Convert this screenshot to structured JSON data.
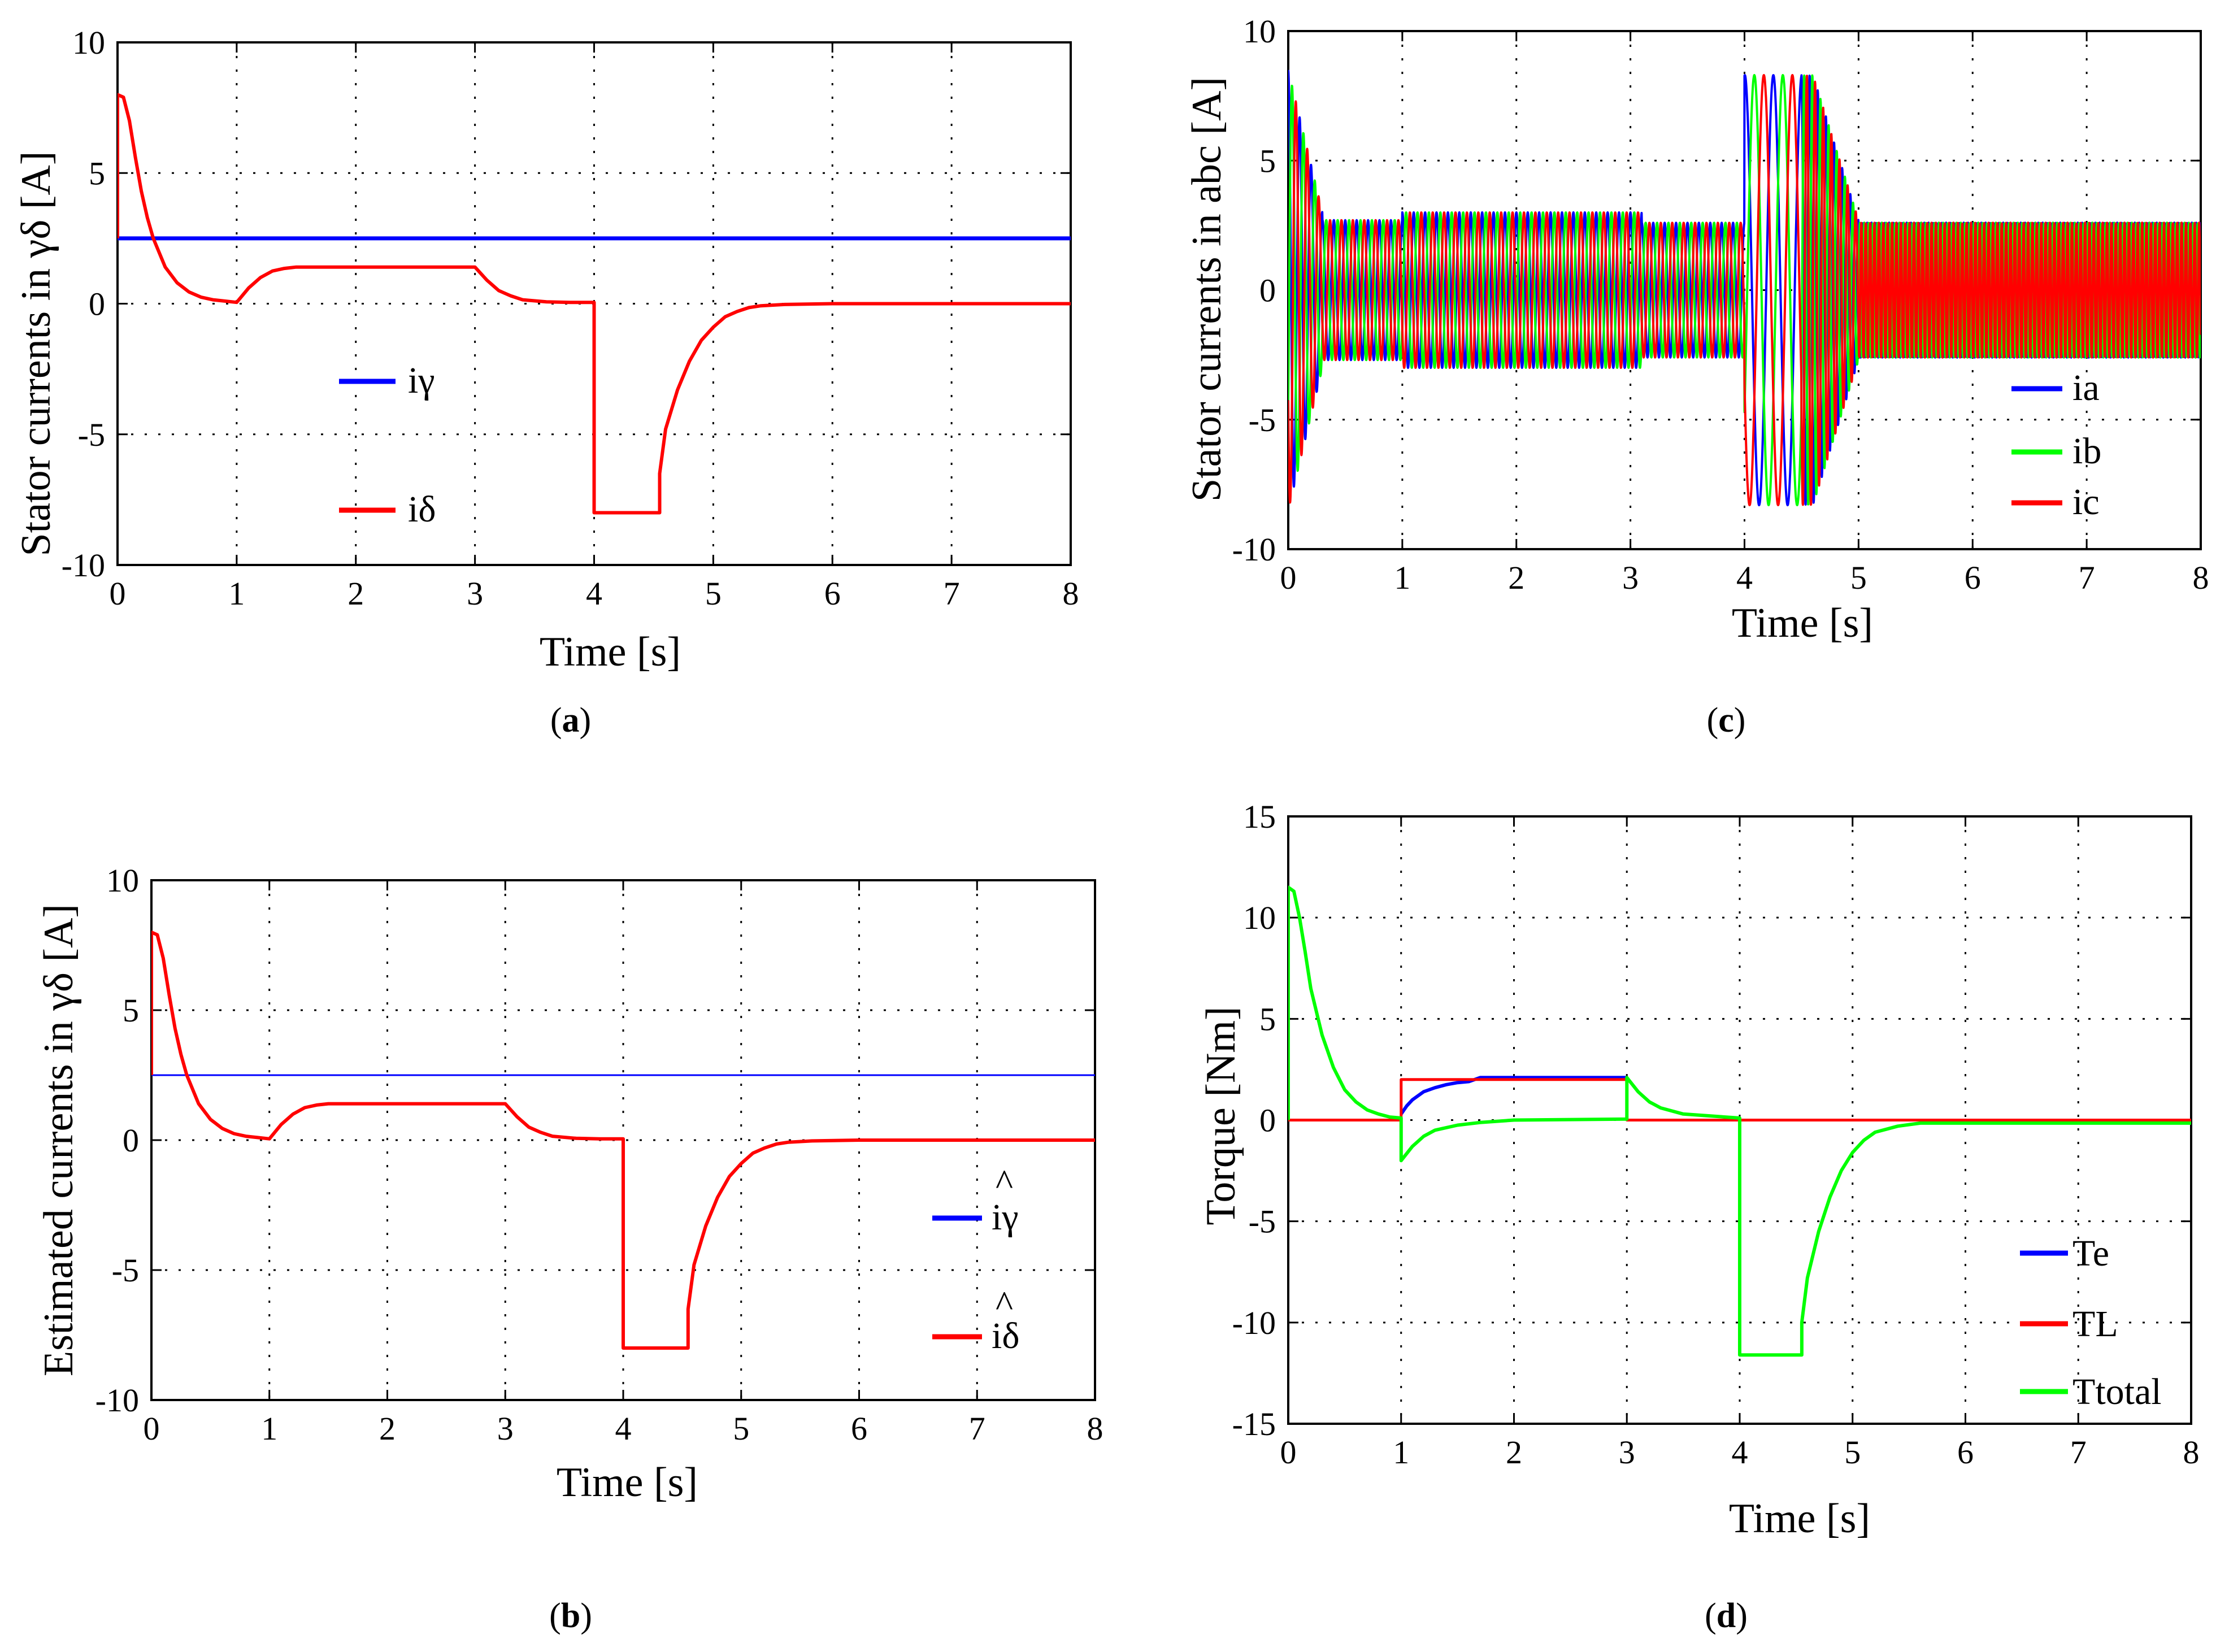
{
  "chart_data": [
    {
      "id": "a",
      "type": "line",
      "caption_letter": "a",
      "xlabel": "Time [s]",
      "ylabel": "Stator currents in γδ [A]",
      "xlim": [
        0,
        8
      ],
      "ylim": [
        -10,
        10
      ],
      "xticks": [
        "0",
        "1",
        "2",
        "3",
        "4",
        "5",
        "6",
        "7",
        "8"
      ],
      "yticks": [
        "-10",
        "-5",
        "0",
        "5",
        "10"
      ],
      "grid": true,
      "legend_position": "center-left",
      "series": [
        {
          "name": "iγ",
          "color": "#0000ff",
          "width": 7,
          "x": [
            0,
            8
          ],
          "y": [
            2.5,
            2.5
          ]
        },
        {
          "name": "iδ",
          "color": "#ff0000",
          "width": 6,
          "x": [
            0,
            0,
            0.05,
            0.1,
            0.15,
            0.2,
            0.25,
            0.3,
            0.4,
            0.5,
            0.6,
            0.7,
            0.8,
            0.9,
            1.0,
            1.1,
            1.2,
            1.3,
            1.4,
            1.5,
            3.0,
            3.1,
            3.2,
            3.3,
            3.4,
            3.6,
            3.8,
            4.0,
            4.0,
            4.55,
            4.55,
            4.6,
            4.7,
            4.8,
            4.9,
            5.0,
            5.1,
            5.2,
            5.3,
            5.4,
            5.6,
            6,
            8
          ],
          "y": [
            2.5,
            8,
            7.9,
            7.0,
            5.6,
            4.3,
            3.3,
            2.5,
            1.4,
            0.8,
            0.45,
            0.25,
            0.15,
            0.1,
            0.05,
            0.6,
            1.0,
            1.25,
            1.35,
            1.4,
            1.4,
            0.9,
            0.5,
            0.3,
            0.15,
            0.07,
            0.05,
            0.05,
            -8,
            -8,
            -6.5,
            -4.8,
            -3.3,
            -2.2,
            -1.4,
            -0.9,
            -0.5,
            -0.3,
            -0.15,
            -0.08,
            -0.03,
            0,
            0
          ]
        }
      ]
    },
    {
      "id": "c",
      "type": "line",
      "caption_letter": "c",
      "xlabel": "Time [s]",
      "ylabel": "Stator currents in abc [A]",
      "xlim": [
        0,
        8
      ],
      "ylim": [
        -10,
        10
      ],
      "xticks": [
        "0",
        "1",
        "2",
        "3",
        "4",
        "5",
        "6",
        "7",
        "8"
      ],
      "yticks": [
        "-10",
        "-5",
        "0",
        "5",
        "10"
      ],
      "grid": true,
      "legend_position": "bottom-right",
      "series": [
        {
          "name": "ia",
          "color": "#0000ff",
          "width": 4
        },
        {
          "name": "ib",
          "color": "#00ff00",
          "width": 4
        },
        {
          "name": "ic",
          "color": "#ff0000",
          "width": 4
        }
      ]
    },
    {
      "id": "b",
      "type": "line",
      "caption_letter": "b",
      "xlabel": "Time [s]",
      "ylabel": "Estimated currents in γδ [A]",
      "xlim": [
        0,
        8
      ],
      "ylim": [
        -10,
        10
      ],
      "xticks": [
        "0",
        "1",
        "2",
        "3",
        "4",
        "5",
        "6",
        "7",
        "8"
      ],
      "yticks": [
        "-10",
        "-5",
        "0",
        "5",
        "10"
      ],
      "grid": true,
      "legend_position": "bottom-right",
      "legend_hat": "^",
      "series": [
        {
          "name": "iγ",
          "color": "#0000ff",
          "width": 3,
          "x": [
            0,
            8
          ],
          "y": [
            2.5,
            2.5
          ]
        },
        {
          "name": "iδ",
          "color": "#ff0000",
          "width": 6,
          "x": [
            0,
            0,
            0.05,
            0.1,
            0.15,
            0.2,
            0.25,
            0.3,
            0.4,
            0.5,
            0.6,
            0.7,
            0.8,
            0.9,
            1.0,
            1.1,
            1.2,
            1.3,
            1.4,
            1.5,
            3.0,
            3.1,
            3.2,
            3.3,
            3.4,
            3.6,
            3.8,
            4.0,
            4.0,
            4.55,
            4.55,
            4.6,
            4.7,
            4.8,
            4.9,
            5.0,
            5.1,
            5.2,
            5.3,
            5.4,
            5.6,
            6,
            8
          ],
          "y": [
            2.5,
            8,
            7.9,
            7.0,
            5.6,
            4.3,
            3.3,
            2.5,
            1.4,
            0.8,
            0.45,
            0.25,
            0.15,
            0.1,
            0.05,
            0.6,
            1.0,
            1.25,
            1.35,
            1.4,
            1.4,
            0.9,
            0.5,
            0.3,
            0.15,
            0.07,
            0.05,
            0.05,
            -8,
            -8,
            -6.5,
            -4.8,
            -3.3,
            -2.2,
            -1.4,
            -0.9,
            -0.5,
            -0.3,
            -0.15,
            -0.08,
            -0.03,
            0,
            0
          ]
        }
      ]
    },
    {
      "id": "d",
      "type": "line",
      "caption_letter": "d",
      "xlabel": "Time [s]",
      "ylabel": "Torque [Nm]",
      "xlim": [
        0,
        8
      ],
      "ylim": [
        -15,
        15
      ],
      "xticks": [
        "0",
        "1",
        "2",
        "3",
        "4",
        "5",
        "6",
        "7",
        "8"
      ],
      "yticks": [
        "-15",
        "-10",
        "-5",
        "0",
        "5",
        "10",
        "15"
      ],
      "grid": true,
      "legend_position": "bottom-right",
      "series": [
        {
          "name": "Te",
          "color": "#0000ff",
          "width": 6,
          "x": [
            1,
            1.05,
            1.1,
            1.2,
            1.3,
            1.4,
            1.5,
            1.6,
            1.7,
            3.0
          ],
          "y": [
            0.3,
            0.7,
            1.0,
            1.4,
            1.6,
            1.75,
            1.85,
            1.9,
            2.1,
            2.1
          ]
        },
        {
          "name": "TL",
          "color": "#ff0000",
          "width": 5,
          "x": [
            0,
            1,
            1,
            3,
            3,
            8
          ],
          "y": [
            0,
            0,
            2,
            2,
            0,
            0
          ]
        },
        {
          "name": "Ttotal",
          "color": "#00ff00",
          "width": 6,
          "x": [
            0,
            0,
            0.05,
            0.1,
            0.15,
            0.2,
            0.3,
            0.4,
            0.5,
            0.6,
            0.7,
            0.8,
            0.9,
            1.0,
            1.0,
            1.1,
            1.2,
            1.3,
            1.5,
            1.7,
            2.0,
            3.0,
            3.0,
            3.1,
            3.2,
            3.3,
            3.5,
            4.0,
            4.0,
            4.55,
            4.55,
            4.6,
            4.7,
            4.8,
            4.9,
            5.0,
            5.1,
            5.2,
            5.4,
            5.6,
            8
          ],
          "y": [
            0,
            11.5,
            11.3,
            10.0,
            8.3,
            6.5,
            4.2,
            2.6,
            1.5,
            0.9,
            0.5,
            0.3,
            0.15,
            0.1,
            -2,
            -1.3,
            -0.8,
            -0.5,
            -0.25,
            -0.12,
            0,
            0.05,
            2.1,
            1.4,
            0.9,
            0.6,
            0.3,
            0.1,
            -11.6,
            -11.6,
            -10.0,
            -7.8,
            -5.5,
            -3.8,
            -2.5,
            -1.6,
            -1.0,
            -0.6,
            -0.3,
            -0.15,
            -0.15
          ]
        }
      ]
    }
  ]
}
